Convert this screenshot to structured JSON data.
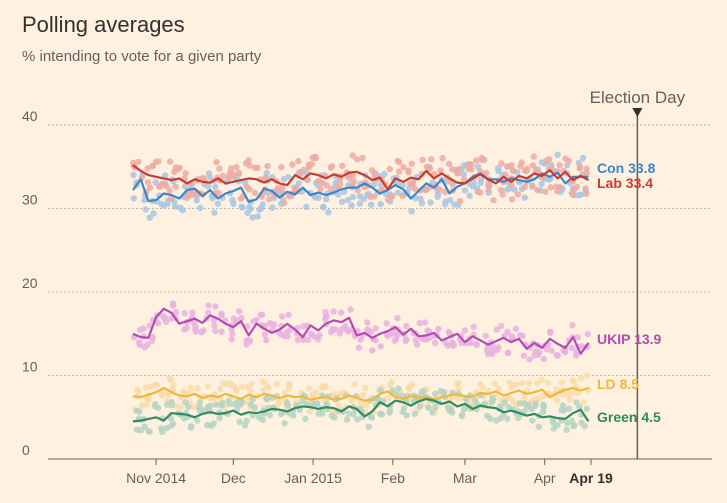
{
  "header": {
    "title": "Polling averages",
    "subtitle": "% intending to vote for a given party"
  },
  "chart_data": {
    "type": "line",
    "title": "Polling averages",
    "subtitle": "% intending to vote for a given party",
    "ylim": [
      0,
      40
    ],
    "yticks": [
      0,
      10,
      20,
      30,
      40
    ],
    "xlim": [
      "2014-09-20",
      "2015-06-05"
    ],
    "xticks": [
      {
        "date": "2014-11-01",
        "label": "Nov 2014",
        "bold": false
      },
      {
        "date": "2014-12-01",
        "label": "Dec",
        "bold": false
      },
      {
        "date": "2015-01-01",
        "label": "Jan 2015",
        "bold": false
      },
      {
        "date": "2015-02-01",
        "label": "Feb",
        "bold": false
      },
      {
        "date": "2015-03-01",
        "label": "Mar",
        "bold": false
      },
      {
        "date": "2015-04-01",
        "label": "Apr",
        "bold": false
      },
      {
        "date": "2015-04-19",
        "label": "Apr 19",
        "bold": true
      }
    ],
    "grid": true,
    "event": {
      "date": "2015-05-07",
      "label": "Election Day"
    },
    "series": [
      {
        "name": "Con",
        "end_value": 33.8,
        "end_label": "33.8",
        "color": "#3a87c9",
        "dot_color": "#a9c5e2",
        "values": [
          [
            0,
            32.2
          ],
          [
            3,
            33.5
          ],
          [
            6,
            30.9
          ],
          [
            9,
            31.0
          ],
          [
            12,
            31.8
          ],
          [
            15,
            31.6
          ],
          [
            18,
            31.2
          ],
          [
            21,
            32.2
          ],
          [
            24,
            32.4
          ],
          [
            27,
            31.5
          ],
          [
            30,
            32.2
          ],
          [
            33,
            31.2
          ],
          [
            36,
            31.8
          ],
          [
            39,
            32.1
          ],
          [
            42,
            32.5
          ],
          [
            45,
            30.8
          ],
          [
            48,
            31.1
          ],
          [
            51,
            32.4
          ],
          [
            54,
            32.1
          ],
          [
            57,
            31.3
          ],
          [
            60,
            32.0
          ],
          [
            63,
            31.7
          ],
          [
            66,
            32.5
          ],
          [
            69,
            31.6
          ],
          [
            72,
            31.9
          ],
          [
            75,
            31.6
          ],
          [
            78,
            31.9
          ],
          [
            81,
            32.3
          ],
          [
            84,
            32.5
          ],
          [
            87,
            32.5
          ],
          [
            90,
            33.0
          ],
          [
            93,
            32.5
          ],
          [
            96,
            31.8
          ],
          [
            99,
            32.2
          ],
          [
            102,
            32.8
          ],
          [
            105,
            32.3
          ],
          [
            108,
            31.2
          ],
          [
            111,
            32.1
          ],
          [
            114,
            33.0
          ],
          [
            117,
            32.5
          ],
          [
            120,
            33.5
          ],
          [
            123,
            31.8
          ],
          [
            126,
            32.6
          ],
          [
            129,
            33.0
          ],
          [
            132,
            33.8
          ],
          [
            135,
            34.2
          ],
          [
            138,
            33.5
          ],
          [
            141,
            33.5
          ],
          [
            144,
            33.2
          ],
          [
            147,
            33.6
          ],
          [
            150,
            33.4
          ],
          [
            153,
            33.2
          ],
          [
            156,
            33.5
          ],
          [
            159,
            34.2
          ],
          [
            162,
            33.8
          ],
          [
            165,
            34.3
          ],
          [
            168,
            33.0
          ],
          [
            171,
            33.8
          ],
          [
            174,
            33.8
          ],
          [
            177,
            33.8
          ]
        ]
      },
      {
        "name": "Lab",
        "end_value": 33.4,
        "end_label": "33.4",
        "color": "#cc3a2e",
        "dot_color": "#eeaaa2",
        "values": [
          [
            0,
            35.2
          ],
          [
            3,
            34.5
          ],
          [
            6,
            34.0
          ],
          [
            9,
            33.8
          ],
          [
            12,
            33.6
          ],
          [
            15,
            33.4
          ],
          [
            18,
            33.6
          ],
          [
            21,
            33.0
          ],
          [
            24,
            33.5
          ],
          [
            27,
            33.2
          ],
          [
            30,
            33.1
          ],
          [
            33,
            33.6
          ],
          [
            36,
            33.0
          ],
          [
            39,
            33.2
          ],
          [
            42,
            33.4
          ],
          [
            45,
            33.6
          ],
          [
            48,
            33.5
          ],
          [
            51,
            33.1
          ],
          [
            54,
            33.5
          ],
          [
            57,
            33.0
          ],
          [
            60,
            32.8
          ],
          [
            63,
            34.0
          ],
          [
            66,
            33.5
          ],
          [
            69,
            34.2
          ],
          [
            72,
            34.0
          ],
          [
            75,
            33.6
          ],
          [
            78,
            34.1
          ],
          [
            81,
            33.8
          ],
          [
            84,
            34.3
          ],
          [
            87,
            34.4
          ],
          [
            90,
            34.0
          ],
          [
            93,
            33.4
          ],
          [
            96,
            33.7
          ],
          [
            99,
            32.3
          ],
          [
            102,
            33.6
          ],
          [
            105,
            33.2
          ],
          [
            108,
            33.7
          ],
          [
            111,
            33.5
          ],
          [
            114,
            34.5
          ],
          [
            117,
            33.6
          ],
          [
            120,
            34.2
          ],
          [
            123,
            33.6
          ],
          [
            126,
            33.1
          ],
          [
            129,
            33.0
          ],
          [
            132,
            33.6
          ],
          [
            135,
            34.1
          ],
          [
            138,
            33.5
          ],
          [
            141,
            33.0
          ],
          [
            144,
            33.8
          ],
          [
            147,
            33.2
          ],
          [
            150,
            33.9
          ],
          [
            153,
            33.6
          ],
          [
            156,
            34.2
          ],
          [
            159,
            33.9
          ],
          [
            162,
            34.6
          ],
          [
            165,
            33.6
          ],
          [
            168,
            34.4
          ],
          [
            171,
            33.4
          ],
          [
            174,
            33.9
          ],
          [
            177,
            33.4
          ]
        ]
      },
      {
        "name": "UKIP",
        "end_value": 13.9,
        "end_label": "13.9",
        "color": "#b44bb4",
        "dot_color": "#e8b1e0",
        "values": [
          [
            0,
            15.0
          ],
          [
            3,
            14.6
          ],
          [
            6,
            14.5
          ],
          [
            9,
            17.0
          ],
          [
            12,
            18.0
          ],
          [
            15,
            17.5
          ],
          [
            18,
            16.2
          ],
          [
            21,
            16.5
          ],
          [
            24,
            16.8
          ],
          [
            27,
            16.3
          ],
          [
            30,
            17.2
          ],
          [
            33,
            16.8
          ],
          [
            36,
            16.2
          ],
          [
            39,
            15.8
          ],
          [
            42,
            16.5
          ],
          [
            45,
            14.8
          ],
          [
            48,
            16.2
          ],
          [
            51,
            15.6
          ],
          [
            54,
            15.1
          ],
          [
            57,
            15.5
          ],
          [
            60,
            16.2
          ],
          [
            63,
            15.5
          ],
          [
            66,
            14.6
          ],
          [
            69,
            16.0
          ],
          [
            72,
            15.4
          ],
          [
            75,
            16.2
          ],
          [
            78,
            16.6
          ],
          [
            81,
            16.4
          ],
          [
            84,
            16.9
          ],
          [
            87,
            14.8
          ],
          [
            90,
            15.1
          ],
          [
            93,
            14.5
          ],
          [
            96,
            15.0
          ],
          [
            99,
            15.3
          ],
          [
            102,
            15.8
          ],
          [
            105,
            14.9
          ],
          [
            108,
            15.6
          ],
          [
            111,
            14.7
          ],
          [
            114,
            14.8
          ],
          [
            117,
            15.1
          ],
          [
            120,
            14.2
          ],
          [
            123,
            14.6
          ],
          [
            126,
            15.0
          ],
          [
            129,
            14.0
          ],
          [
            132,
            14.7
          ],
          [
            135,
            14.2
          ],
          [
            138,
            13.7
          ],
          [
            141,
            14.1
          ],
          [
            144,
            14.5
          ],
          [
            147,
            14.0
          ],
          [
            150,
            14.4
          ],
          [
            153,
            13.2
          ],
          [
            156,
            13.9
          ],
          [
            159,
            13.3
          ],
          [
            162,
            14.4
          ],
          [
            165,
            13.8
          ],
          [
            168,
            13.3
          ],
          [
            171,
            14.6
          ],
          [
            174,
            12.6
          ],
          [
            177,
            13.9
          ]
        ]
      },
      {
        "name": "LD",
        "end_value": 8.5,
        "end_label": "8.5",
        "color": "#f1b63a",
        "dot_color": "#f9dcaa",
        "values": [
          [
            0,
            7.5
          ],
          [
            3,
            7.4
          ],
          [
            6,
            7.7
          ],
          [
            9,
            8.0
          ],
          [
            12,
            8.5
          ],
          [
            15,
            8.0
          ],
          [
            18,
            7.6
          ],
          [
            21,
            7.5
          ],
          [
            24,
            7.8
          ],
          [
            27,
            7.3
          ],
          [
            30,
            7.6
          ],
          [
            33,
            7.4
          ],
          [
            36,
            7.8
          ],
          [
            39,
            7.5
          ],
          [
            42,
            7.2
          ],
          [
            45,
            7.7
          ],
          [
            48,
            7.4
          ],
          [
            51,
            7.8
          ],
          [
            54,
            7.6
          ],
          [
            57,
            7.3
          ],
          [
            60,
            7.6
          ],
          [
            63,
            7.4
          ],
          [
            66,
            7.5
          ],
          [
            69,
            7.1
          ],
          [
            72,
            7.3
          ],
          [
            75,
            7.4
          ],
          [
            78,
            7.1
          ],
          [
            81,
            7.2
          ],
          [
            84,
            7.6
          ],
          [
            87,
            7.3
          ],
          [
            90,
            7.0
          ],
          [
            93,
            7.1
          ],
          [
            96,
            7.8
          ],
          [
            99,
            8.1
          ],
          [
            102,
            7.4
          ],
          [
            105,
            7.2
          ],
          [
            108,
            7.6
          ],
          [
            111,
            7.3
          ],
          [
            114,
            7.5
          ],
          [
            117,
            7.1
          ],
          [
            120,
            7.4
          ],
          [
            123,
            7.6
          ],
          [
            126,
            7.8
          ],
          [
            129,
            7.5
          ],
          [
            132,
            7.5
          ],
          [
            135,
            7.9
          ],
          [
            138,
            7.8
          ],
          [
            141,
            8.1
          ],
          [
            144,
            7.6
          ],
          [
            147,
            7.9
          ],
          [
            150,
            8.2
          ],
          [
            153,
            7.8
          ],
          [
            156,
            8.0
          ],
          [
            159,
            8.3
          ],
          [
            162,
            7.4
          ],
          [
            165,
            7.9
          ],
          [
            168,
            8.3
          ],
          [
            171,
            8.5
          ],
          [
            174,
            8.2
          ],
          [
            177,
            8.5
          ]
        ]
      },
      {
        "name": "Green",
        "end_value": 4.5,
        "end_label": "4.5",
        "color": "#2e8c62",
        "dot_color": "#b5d4c3",
        "values": [
          [
            0,
            4.5
          ],
          [
            3,
            4.6
          ],
          [
            6,
            4.8
          ],
          [
            9,
            5.0
          ],
          [
            12,
            4.6
          ],
          [
            15,
            5.5
          ],
          [
            18,
            5.4
          ],
          [
            21,
            5.3
          ],
          [
            24,
            5.0
          ],
          [
            27,
            5.4
          ],
          [
            30,
            5.6
          ],
          [
            33,
            5.4
          ],
          [
            36,
            5.5
          ],
          [
            39,
            5.8
          ],
          [
            42,
            5.3
          ],
          [
            45,
            5.6
          ],
          [
            48,
            5.5
          ],
          [
            51,
            5.7
          ],
          [
            54,
            6.0
          ],
          [
            57,
            5.9
          ],
          [
            60,
            5.7
          ],
          [
            63,
            6.1
          ],
          [
            66,
            6.3
          ],
          [
            69,
            6.2
          ],
          [
            72,
            6.0
          ],
          [
            75,
            6.2
          ],
          [
            78,
            6.1
          ],
          [
            81,
            5.7
          ],
          [
            84,
            6.3
          ],
          [
            87,
            6.0
          ],
          [
            90,
            5.1
          ],
          [
            93,
            5.7
          ],
          [
            96,
            6.8
          ],
          [
            99,
            6.3
          ],
          [
            102,
            7.0
          ],
          [
            105,
            6.8
          ],
          [
            108,
            6.4
          ],
          [
            111,
            6.9
          ],
          [
            114,
            7.2
          ],
          [
            117,
            7.0
          ],
          [
            120,
            6.6
          ],
          [
            123,
            6.9
          ],
          [
            126,
            6.3
          ],
          [
            129,
            6.6
          ],
          [
            132,
            6.0
          ],
          [
            135,
            6.4
          ],
          [
            138,
            6.2
          ],
          [
            141,
            6.1
          ],
          [
            144,
            5.6
          ],
          [
            147,
            5.8
          ],
          [
            150,
            5.5
          ],
          [
            153,
            5.2
          ],
          [
            156,
            5.4
          ],
          [
            159,
            5.0
          ],
          [
            162,
            5.1
          ],
          [
            165,
            4.9
          ],
          [
            168,
            4.8
          ],
          [
            171,
            5.5
          ],
          [
            174,
            5.9
          ],
          [
            177,
            4.5
          ]
        ]
      }
    ]
  }
}
